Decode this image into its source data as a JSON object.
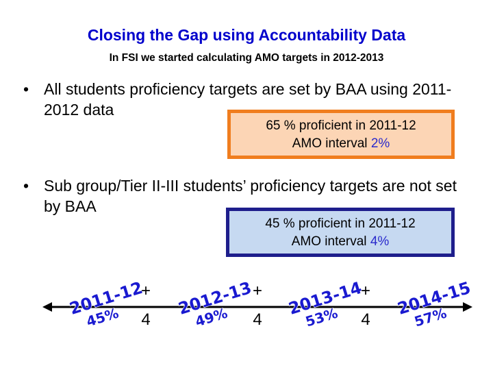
{
  "header": {
    "title": "Closing the Gap using Accountability Data",
    "subtitle": "In FSI we started calculating AMO targets in 2012-2013"
  },
  "bullets": [
    {
      "symbol": "•",
      "text": "All students proficiency targets are set by BAA using 2011-2012 data",
      "box": {
        "line1": "65 % proficient in 2011-12",
        "line2_label": "AMO interval ",
        "line2_value": "2%"
      }
    },
    {
      "symbol": "•",
      "text": "Sub group/Tier II-III students’ proficiency targets are not set by BAA",
      "box": {
        "line1": "45 % proficient in 2011-12",
        "line2_label": "AMO interval ",
        "line2_value": "4%"
      }
    }
  ],
  "timeline": {
    "stages": [
      {
        "year": "2011-12",
        "percent": "45%"
      },
      {
        "year": "2012-13",
        "percent": "49%"
      },
      {
        "year": "2013-14",
        "percent": "53%"
      },
      {
        "year": "2014-15",
        "percent": "57%"
      }
    ],
    "steps": [
      {
        "sign": "+",
        "value": "4"
      },
      {
        "sign": "+",
        "value": "4"
      },
      {
        "sign": "+",
        "value": "4"
      }
    ]
  },
  "colors": {
    "title": "#0000cc",
    "box1_fill": "#fcd5b5",
    "box1_border": "#f07d1e",
    "box2_fill": "#c6d9f1",
    "box2_border": "#1e1e8c",
    "wordart": "#1a1ad0"
  }
}
